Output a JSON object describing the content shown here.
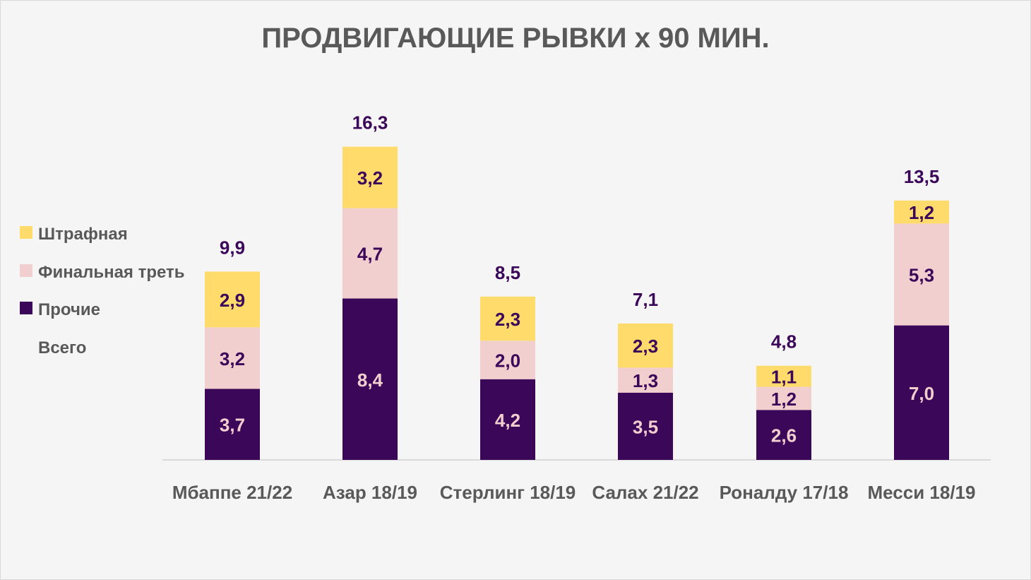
{
  "colors": {
    "background": "#f5f5f5",
    "penalty_area": "#fedb6b",
    "final_third": "#f2cfcf",
    "other": "#3b0758",
    "total_text": "#3b0758",
    "dark_label_text": "#3b0758",
    "light_label_text": "#f2cfcf",
    "axis_text": "#595959"
  },
  "chart_data": {
    "type": "bar",
    "stacked": true,
    "title": "ПРОДВИГАЮЩИЕ РЫВКИ х 90 МИН.",
    "categories": [
      "Мбаппе 21/22",
      "Азар 18/19",
      "Стерлинг 18/19",
      "Салах 21/22",
      "Роналду 17/18",
      "Месси 18/19"
    ],
    "series": [
      {
        "name": "Прочие",
        "values": [
          3.7,
          8.4,
          4.2,
          3.5,
          2.6,
          7.0
        ],
        "labels": [
          "3,7",
          "8,4",
          "4,2",
          "3,5",
          "2,6",
          "7,0"
        ],
        "color": "#3b0758"
      },
      {
        "name": "Финальная треть",
        "values": [
          3.2,
          4.7,
          2.0,
          1.3,
          1.2,
          5.3
        ],
        "labels": [
          "3,2",
          "4,7",
          "2,0",
          "1,3",
          "1,2",
          "5,3"
        ],
        "color": "#f2cfcf"
      },
      {
        "name": "Штрафная",
        "values": [
          2.9,
          3.2,
          2.3,
          2.3,
          1.1,
          1.2
        ],
        "labels": [
          "2,9",
          "3,2",
          "2,3",
          "2,3",
          "1,1",
          "1,2"
        ],
        "color": "#fedb6b"
      }
    ],
    "totals": {
      "name": "Всего",
      "values": [
        9.9,
        16.3,
        8.5,
        7.1,
        4.8,
        13.5
      ],
      "labels": [
        "9,9",
        "16,3",
        "8,5",
        "7,1",
        "4,8",
        "13,5"
      ]
    },
    "legend": {
      "position": "left",
      "items": [
        {
          "label": "Штрафная",
          "color": "#fedb6b",
          "swatch": true
        },
        {
          "label": "Финальная треть",
          "color": "#f2cfcf",
          "swatch": true
        },
        {
          "label": "Прочие",
          "color": "#3b0758",
          "swatch": true
        },
        {
          "label": "Всего",
          "swatch": false
        }
      ]
    },
    "ylim": [
      0,
      16.3
    ],
    "grid": false
  }
}
